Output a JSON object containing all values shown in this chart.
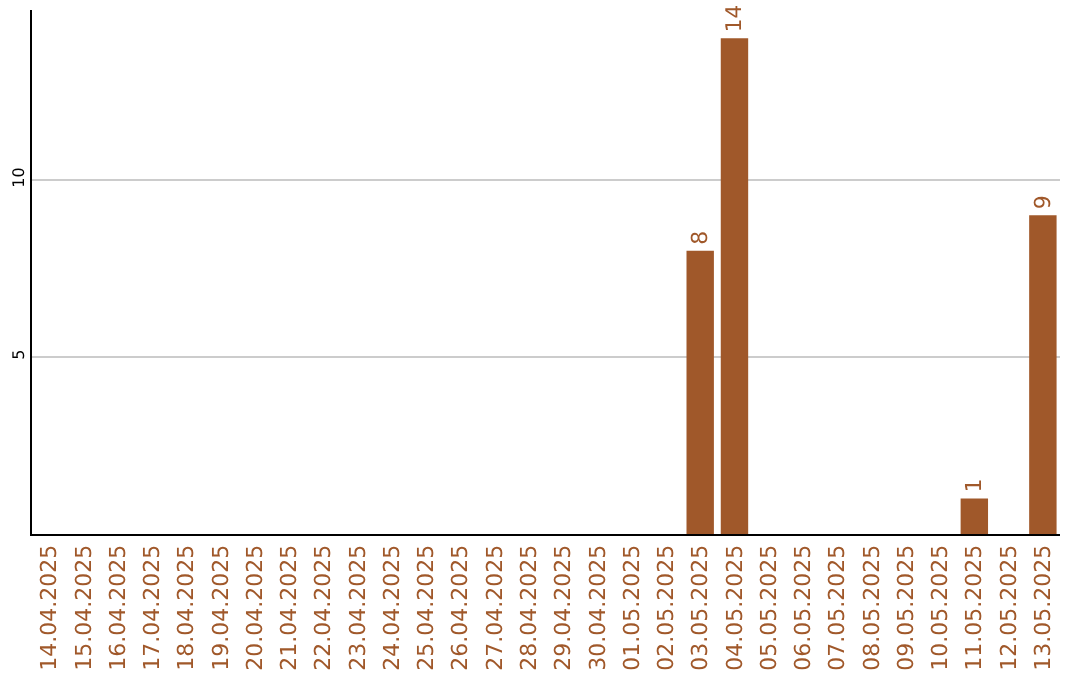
{
  "chart_data": {
    "type": "bar",
    "categories": [
      "14.04.2025",
      "15.04.2025",
      "16.04.2025",
      "17.04.2025",
      "18.04.2025",
      "19.04.2025",
      "20.04.2025",
      "21.04.2025",
      "22.04.2025",
      "23.04.2025",
      "24.04.2025",
      "25.04.2025",
      "26.04.2025",
      "27.04.2025",
      "28.04.2025",
      "29.04.2025",
      "30.04.2025",
      "01.05.2025",
      "02.05.2025",
      "03.05.2025",
      "04.05.2025",
      "05.05.2025",
      "06.05.2025",
      "07.05.2025",
      "08.05.2025",
      "09.05.2025",
      "10.05.2025",
      "11.05.2025",
      "12.05.2025",
      "13.05.2025"
    ],
    "values": [
      0,
      0,
      0,
      0,
      0,
      0,
      0,
      0,
      0,
      0,
      0,
      0,
      0,
      0,
      0,
      0,
      0,
      0,
      0,
      8,
      14,
      0,
      0,
      0,
      0,
      0,
      0,
      1,
      0,
      9
    ],
    "value_labels": [
      null,
      null,
      null,
      null,
      null,
      null,
      null,
      null,
      null,
      null,
      null,
      null,
      null,
      null,
      null,
      null,
      null,
      null,
      null,
      "8",
      "14",
      null,
      null,
      null,
      null,
      null,
      null,
      "1",
      null,
      "9"
    ],
    "color": "#a0582a",
    "ylim": [
      0,
      14.8
    ],
    "yticks": [
      5,
      10
    ],
    "grid": "y"
  }
}
